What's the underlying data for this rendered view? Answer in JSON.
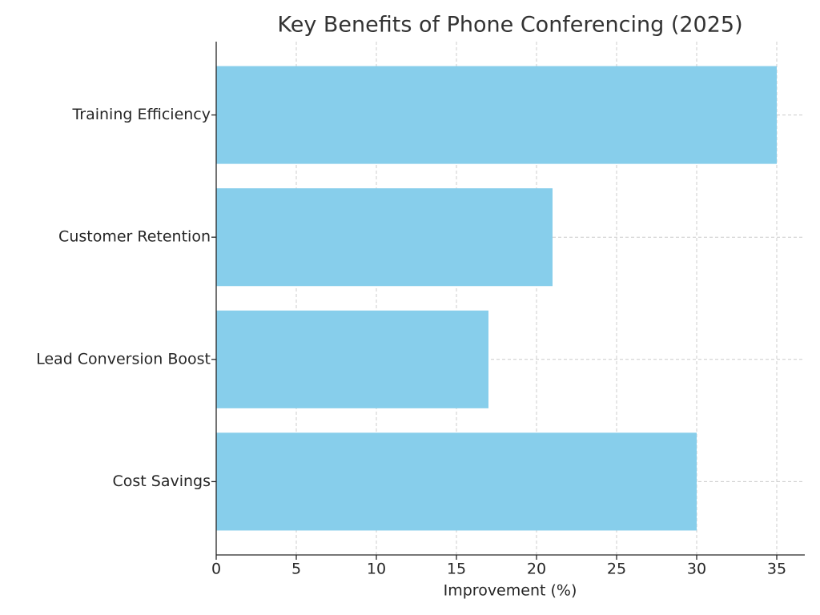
{
  "chart_data": {
    "type": "bar",
    "orientation": "horizontal",
    "title": "Key Benefits of Phone Conferencing (2025)",
    "x_label": "Improvement (%)",
    "categories": [
      "Cost Savings",
      "Lead Conversion Boost",
      "Customer Retention",
      "Training Efficiency"
    ],
    "values": [
      30,
      17,
      21,
      35
    ],
    "color": "#87ceeb",
    "xlim": [
      0,
      36.75
    ],
    "xticks": [
      0,
      5,
      10,
      15,
      20,
      25,
      30,
      35
    ],
    "grid": true
  }
}
